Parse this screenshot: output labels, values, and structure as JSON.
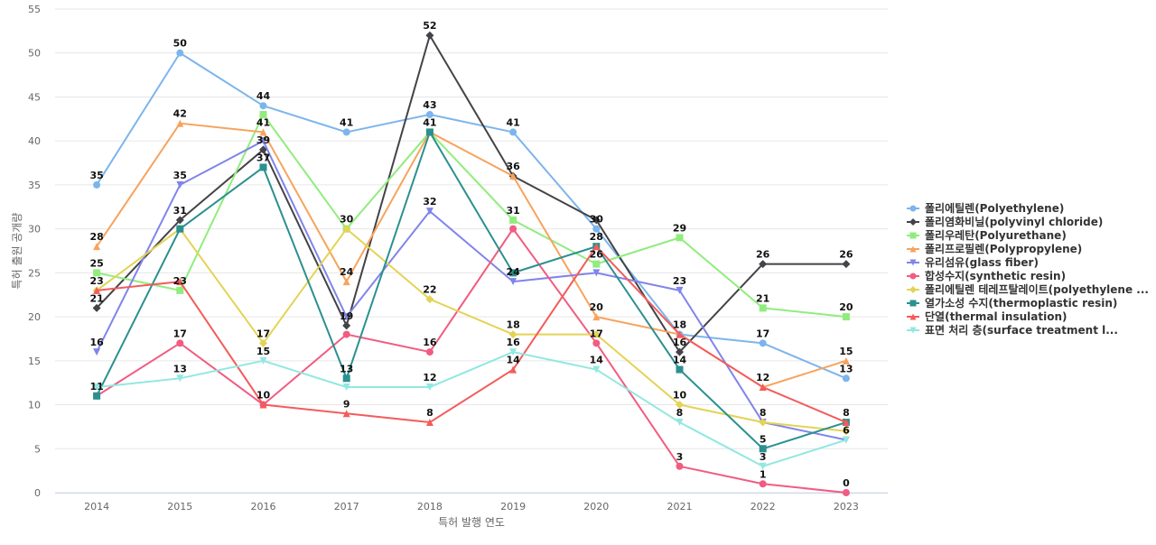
{
  "chart_data": {
    "type": "line",
    "title": "",
    "xlabel": "특허 발행 연도",
    "ylabel": "특허 출원 공개량",
    "ylim": [
      0,
      55
    ],
    "yticks": [
      0,
      5,
      10,
      15,
      20,
      25,
      30,
      35,
      40,
      45,
      50,
      55
    ],
    "grid": true,
    "legend_position": "right",
    "categories": [
      "2014",
      "2015",
      "2016",
      "2017",
      "2018",
      "2019",
      "2020",
      "2021",
      "2022",
      "2023"
    ],
    "series": [
      {
        "name": "폴리에틸렌(Polyethylene)",
        "color": "#7cb5ec",
        "marker": "circle",
        "values": [
          35,
          50,
          44,
          41,
          43,
          41,
          30,
          18,
          17,
          13
        ]
      },
      {
        "name": "폴리염화비닐(polyvinyl chloride)",
        "color": "#434348",
        "marker": "diamond",
        "values": [
          21,
          31,
          39,
          19,
          52,
          36,
          31,
          16,
          26,
          26
        ]
      },
      {
        "name": "폴리우레탄(Polyurethane)",
        "color": "#90ed7d",
        "marker": "square",
        "values": [
          25,
          23,
          43,
          30,
          41,
          31,
          26,
          29,
          21,
          20
        ]
      },
      {
        "name": "폴리프로필렌(Polypropylene)",
        "color": "#f7a35c",
        "marker": "triangle",
        "values": [
          28,
          42,
          41,
          24,
          41,
          36,
          20,
          18,
          12,
          15
        ]
      },
      {
        "name": "유리섬유(glass fiber)",
        "color": "#8085e9",
        "marker": "triangle-down",
        "values": [
          16,
          35,
          40,
          20,
          32,
          24,
          25,
          23,
          8,
          6
        ]
      },
      {
        "name": "합성수지(synthetic resin)",
        "color": "#f15c80",
        "marker": "circle",
        "values": [
          11,
          17,
          10,
          18,
          16,
          30,
          17,
          3,
          1,
          0
        ]
      },
      {
        "name": "폴리에틸렌 테레프탈레이트(polyethylene ...",
        "color": "#e4d354",
        "marker": "diamond",
        "values": [
          23,
          30,
          17,
          30,
          22,
          18,
          18,
          10,
          8,
          7
        ]
      },
      {
        "name": "열가소성 수지(thermoplastic resin)",
        "color": "#2b908f",
        "marker": "square",
        "values": [
          11,
          30,
          37,
          13,
          41,
          25,
          28,
          14,
          5,
          8
        ]
      },
      {
        "name": "단열(thermal insulation)",
        "color": "#f45b5b",
        "marker": "triangle",
        "values": [
          23,
          24,
          10,
          9,
          8,
          14,
          28,
          18,
          12,
          8
        ]
      },
      {
        "name": "표면 처리 층(surface treatment l...",
        "color": "#91e8e1",
        "marker": "triangle-down",
        "values": [
          12,
          13,
          15,
          12,
          12,
          16,
          14,
          8,
          3,
          6
        ]
      }
    ],
    "data_labels": [
      {
        "x": "2014",
        "value": 35,
        "text": "35"
      },
      {
        "x": "2014",
        "value": 28,
        "text": "28"
      },
      {
        "x": "2014",
        "value": 25,
        "text": "25"
      },
      {
        "x": "2014",
        "value": 23,
        "text": "23"
      },
      {
        "x": "2014",
        "value": 21,
        "text": "21"
      },
      {
        "x": "2014",
        "value": 16,
        "text": "16"
      },
      {
        "x": "2014",
        "value": 11,
        "text": "11"
      },
      {
        "x": "2015",
        "value": 50,
        "text": "50"
      },
      {
        "x": "2015",
        "value": 42,
        "text": "42"
      },
      {
        "x": "2015",
        "value": 35,
        "text": "35"
      },
      {
        "x": "2015",
        "value": 31,
        "text": "31"
      },
      {
        "x": "2015",
        "value": 23,
        "text": "23"
      },
      {
        "x": "2015",
        "value": 17,
        "text": "17"
      },
      {
        "x": "2015",
        "value": 13,
        "text": "13"
      },
      {
        "x": "2016",
        "value": 44,
        "text": "44"
      },
      {
        "x": "2016",
        "value": 41,
        "text": "41"
      },
      {
        "x": "2016",
        "value": 39,
        "text": "39"
      },
      {
        "x": "2016",
        "value": 37,
        "text": "37"
      },
      {
        "x": "2016",
        "value": 17,
        "text": "17"
      },
      {
        "x": "2016",
        "value": 15,
        "text": "15"
      },
      {
        "x": "2016",
        "value": 10,
        "text": "10"
      },
      {
        "x": "2017",
        "value": 41,
        "text": "41"
      },
      {
        "x": "2017",
        "value": 30,
        "text": "30"
      },
      {
        "x": "2017",
        "value": 24,
        "text": "24"
      },
      {
        "x": "2017",
        "value": 19,
        "text": "19"
      },
      {
        "x": "2017",
        "value": 13,
        "text": "13"
      },
      {
        "x": "2017",
        "value": 9,
        "text": "9"
      },
      {
        "x": "2018",
        "value": 52,
        "text": "52"
      },
      {
        "x": "2018",
        "value": 43,
        "text": "43"
      },
      {
        "x": "2018",
        "value": 41,
        "text": "41"
      },
      {
        "x": "2018",
        "value": 32,
        "text": "32"
      },
      {
        "x": "2018",
        "value": 22,
        "text": "22"
      },
      {
        "x": "2018",
        "value": 16,
        "text": "16"
      },
      {
        "x": "2018",
        "value": 12,
        "text": "12"
      },
      {
        "x": "2018",
        "value": 8,
        "text": "8"
      },
      {
        "x": "2019",
        "value": 41,
        "text": "41"
      },
      {
        "x": "2019",
        "value": 36,
        "text": "36"
      },
      {
        "x": "2019",
        "value": 31,
        "text": "31"
      },
      {
        "x": "2019",
        "value": 24,
        "text": "24"
      },
      {
        "x": "2019",
        "value": 18,
        "text": "18"
      },
      {
        "x": "2019",
        "value": 16,
        "text": "16"
      },
      {
        "x": "2019",
        "value": 14,
        "text": "14"
      },
      {
        "x": "2020",
        "value": 30,
        "text": "30"
      },
      {
        "x": "2020",
        "value": 28,
        "text": "28"
      },
      {
        "x": "2020",
        "value": 26,
        "text": "26"
      },
      {
        "x": "2020",
        "value": 20,
        "text": "20"
      },
      {
        "x": "2020",
        "value": 17,
        "text": "17"
      },
      {
        "x": "2020",
        "value": 14,
        "text": "14"
      },
      {
        "x": "2021",
        "value": 29,
        "text": "29"
      },
      {
        "x": "2021",
        "value": 23,
        "text": "23"
      },
      {
        "x": "2021",
        "value": 18,
        "text": "18"
      },
      {
        "x": "2021",
        "value": 16,
        "text": "16"
      },
      {
        "x": "2021",
        "value": 14,
        "text": "14"
      },
      {
        "x": "2021",
        "value": 10,
        "text": "10"
      },
      {
        "x": "2021",
        "value": 8,
        "text": "8"
      },
      {
        "x": "2021",
        "value": 3,
        "text": "3"
      },
      {
        "x": "2022",
        "value": 26,
        "text": "26"
      },
      {
        "x": "2022",
        "value": 21,
        "text": "21"
      },
      {
        "x": "2022",
        "value": 17,
        "text": "17"
      },
      {
        "x": "2022",
        "value": 12,
        "text": "12"
      },
      {
        "x": "2022",
        "value": 8,
        "text": "8"
      },
      {
        "x": "2022",
        "value": 5,
        "text": "5"
      },
      {
        "x": "2022",
        "value": 3,
        "text": "3"
      },
      {
        "x": "2022",
        "value": 1,
        "text": "1"
      },
      {
        "x": "2023",
        "value": 26,
        "text": "26"
      },
      {
        "x": "2023",
        "value": 20,
        "text": "20"
      },
      {
        "x": "2023",
        "value": 15,
        "text": "15"
      },
      {
        "x": "2023",
        "value": 13,
        "text": "13"
      },
      {
        "x": "2023",
        "value": 8,
        "text": "8"
      },
      {
        "x": "2023",
        "value": 6,
        "text": "6"
      },
      {
        "x": "2023",
        "value": 0,
        "text": "0"
      }
    ]
  }
}
